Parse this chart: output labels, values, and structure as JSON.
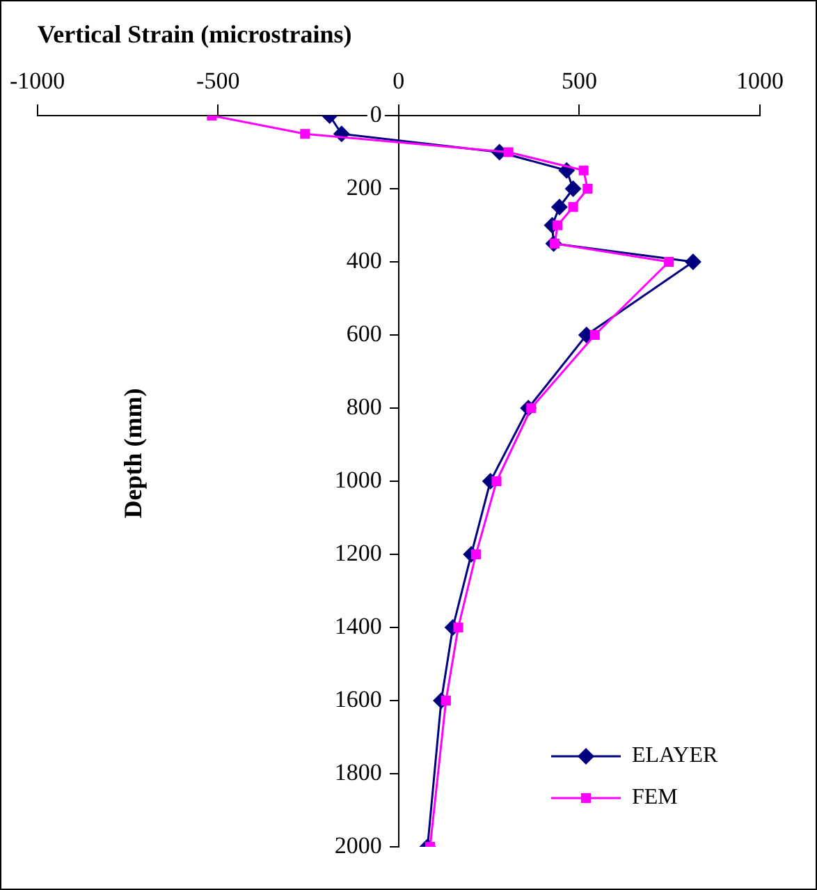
{
  "chart_data": {
    "type": "line",
    "xlabel": "Vertical Strain (microstrains)",
    "ylabel": "Depth (mm)",
    "xlim": [
      -1000,
      1000
    ],
    "xticks": [
      -1000,
      -500,
      0,
      500,
      1000
    ],
    "ylim": [
      2000,
      0
    ],
    "yticks": [
      0,
      200,
      400,
      600,
      800,
      1000,
      1200,
      1400,
      1600,
      1800,
      2000
    ],
    "grid": false,
    "legend": "bottom right",
    "line_style": "solid",
    "series": [
      {
        "name": "ELAYER",
        "color": "#000080",
        "marker": "diamond",
        "x": [
          -191,
          -158,
          279,
          465,
          483,
          445,
          425,
          429,
          815,
          520,
          359,
          254,
          201,
          150,
          118,
          80
        ],
        "values": [
          0,
          50,
          100,
          150,
          200,
          250,
          300,
          350,
          400,
          600,
          800,
          1000,
          1200,
          1400,
          1600,
          2000
        ]
      },
      {
        "name": "FEM",
        "color": "#ff00ff",
        "marker": "square",
        "x": [
          -517,
          -259,
          304,
          512,
          523,
          483,
          440,
          432,
          748,
          543,
          367,
          271,
          214,
          165,
          131,
          87
        ],
        "values": [
          0,
          50,
          100,
          150,
          200,
          250,
          300,
          350,
          400,
          600,
          800,
          1000,
          1200,
          1400,
          1600,
          2000
        ]
      }
    ]
  }
}
